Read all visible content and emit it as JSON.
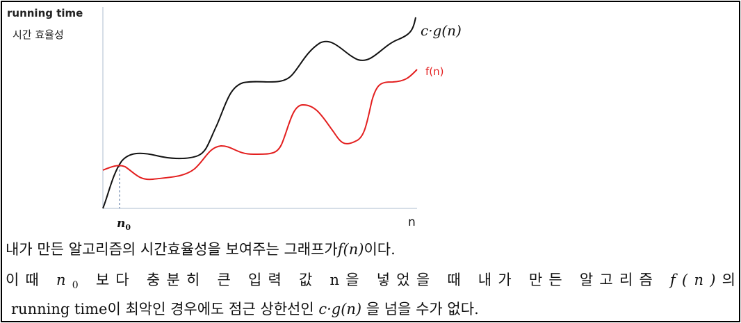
{
  "figure": {
    "y_axis_label": "running time",
    "y_axis_sublabel": "시간 효율성",
    "upper_curve_label": "c·g(n)",
    "lower_curve_label": "f(n)",
    "threshold_label": {
      "base": "n",
      "sub": "0"
    },
    "x_axis_label": "n"
  },
  "paragraph": {
    "lines": [
      [
        "내가 만든 알고리즘의 시간효율성을 보여주는 그래프가",
        "f(n)",
        "이다."
      ],
      [
        "이때 ",
        "n",
        "0",
        " 보다 충분히 큰 입력 값 n을 넣었을 때 내가 만든 알고리즘 ",
        "f(n)",
        "의"
      ],
      [
        "running time이 최악인 경우에도 점근 상한선인 ",
        "c·g(n)",
        " 을 넘을 수가 없다."
      ]
    ]
  }
}
